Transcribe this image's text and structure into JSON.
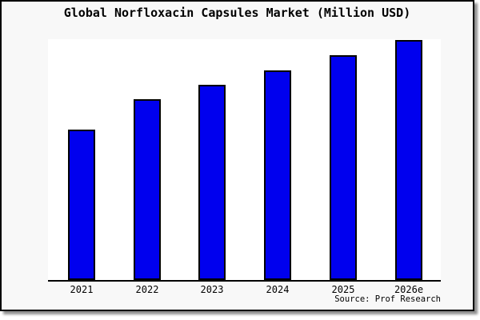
{
  "chart_data": {
    "type": "bar",
    "title": "Global Norfloxacin Capsules Market (Million USD)",
    "categories": [
      "2021",
      "2022",
      "2023",
      "2024",
      "2025",
      "2026e"
    ],
    "values": [
      62.7,
      75.3,
      81.3,
      87.3,
      93.7,
      100
    ],
    "value_basis": "relative bar heights (no y-axis ticks shown); tallest bar 2026e = 100",
    "xlabel": "",
    "ylabel": "",
    "ylim": [
      0,
      100
    ],
    "grid": false,
    "legend": "none",
    "bar_color": "#0000ee",
    "bar_border_color": "#000000",
    "axis_color": "#000000",
    "source_note": "Source: Prof Research"
  },
  "colors": {
    "page_background": "#f8f8f8",
    "plot_background": "#ffffff",
    "frame_border": "#000000",
    "shadow": "#8f8f8f",
    "text": "#000000"
  }
}
